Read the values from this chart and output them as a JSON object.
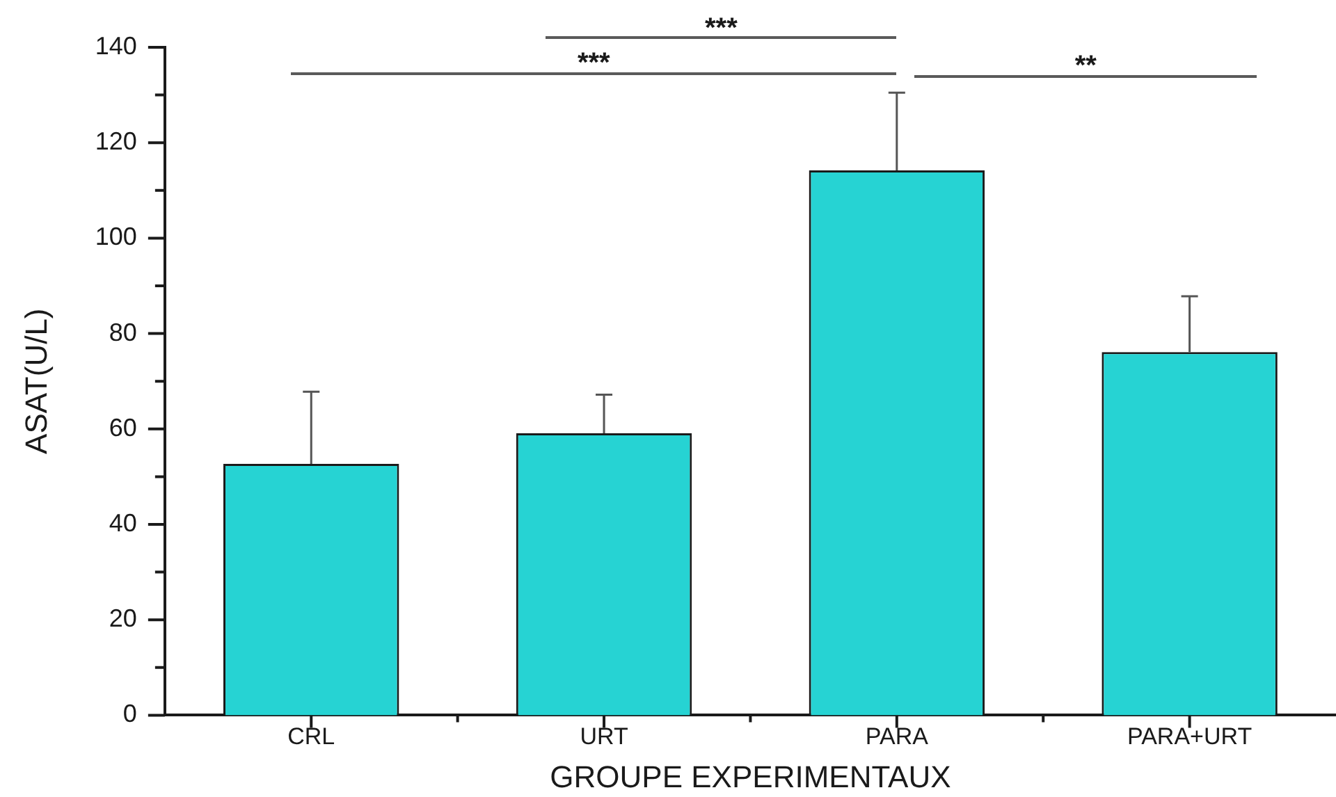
{
  "chart_data": {
    "type": "bar",
    "xlabel": "GROUPE EXPERIMENTAUX",
    "ylabel": "ASAT(U/L)",
    "categories": [
      "CRL",
      "URT",
      "PARA",
      "PARA+URT"
    ],
    "values": [
      52.7,
      59.1,
      114.2,
      76.1
    ],
    "errors": [
      [
        52.7,
        67.8
      ],
      [
        59.1,
        67.2
      ],
      [
        114.2,
        130.5
      ],
      [
        76.1,
        87.8
      ]
    ],
    "color": "#26d3d3",
    "ylim": [
      0,
      140
    ],
    "yticks": [
      0,
      {
        "value": 10,
        "label": null
      },
      20,
      {
        "value": 30,
        "label": null
      },
      40,
      {
        "value": 50,
        "label": null
      },
      60,
      {
        "value": 70,
        "label": null
      },
      80,
      {
        "value": 90,
        "label": null
      },
      100,
      {
        "value": 110,
        "label": null
      },
      120,
      {
        "value": 130,
        "label": null
      },
      140
    ],
    "annotations": [
      "***",
      "***",
      "**"
    ]
  }
}
